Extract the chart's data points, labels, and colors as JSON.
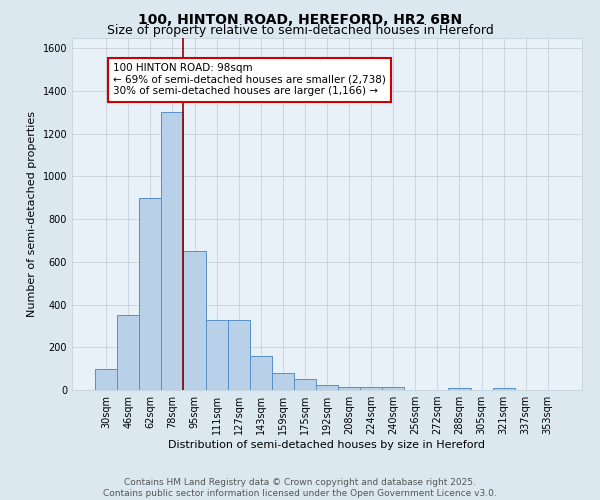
{
  "title_line1": "100, HINTON ROAD, HEREFORD, HR2 6BN",
  "title_line2": "Size of property relative to semi-detached houses in Hereford",
  "xlabel": "Distribution of semi-detached houses by size in Hereford",
  "ylabel": "Number of semi-detached properties",
  "categories": [
    "30sqm",
    "46sqm",
    "62sqm",
    "78sqm",
    "95sqm",
    "111sqm",
    "127sqm",
    "143sqm",
    "159sqm",
    "175sqm",
    "192sqm",
    "208sqm",
    "224sqm",
    "240sqm",
    "256sqm",
    "272sqm",
    "288sqm",
    "305sqm",
    "321sqm",
    "337sqm",
    "353sqm"
  ],
  "values": [
    100,
    350,
    900,
    1300,
    650,
    330,
    330,
    160,
    80,
    50,
    25,
    15,
    15,
    15,
    0,
    0,
    10,
    0,
    10,
    0,
    0
  ],
  "bar_color": "#b8d0e8",
  "bar_edge_color": "#5590c8",
  "vline_index": 4,
  "annotation_text": "100 HINTON ROAD: 98sqm\n← 69% of semi-detached houses are smaller (2,738)\n30% of semi-detached houses are larger (1,166) →",
  "annotation_box_color": "#ffffff",
  "annotation_box_edge": "#cc0000",
  "vline_color": "#8b0000",
  "ylim": [
    0,
    1650
  ],
  "yticks": [
    0,
    200,
    400,
    600,
    800,
    1000,
    1200,
    1400,
    1600
  ],
  "bg_color": "#dce8f0",
  "plot_bg_color": "#e8f0f8",
  "footer_text": "Contains HM Land Registry data © Crown copyright and database right 2025.\nContains public sector information licensed under the Open Government Licence v3.0.",
  "title_fontsize": 10,
  "subtitle_fontsize": 9,
  "axis_label_fontsize": 8,
  "tick_fontsize": 7,
  "annotation_fontsize": 7.5,
  "footer_fontsize": 6.5
}
